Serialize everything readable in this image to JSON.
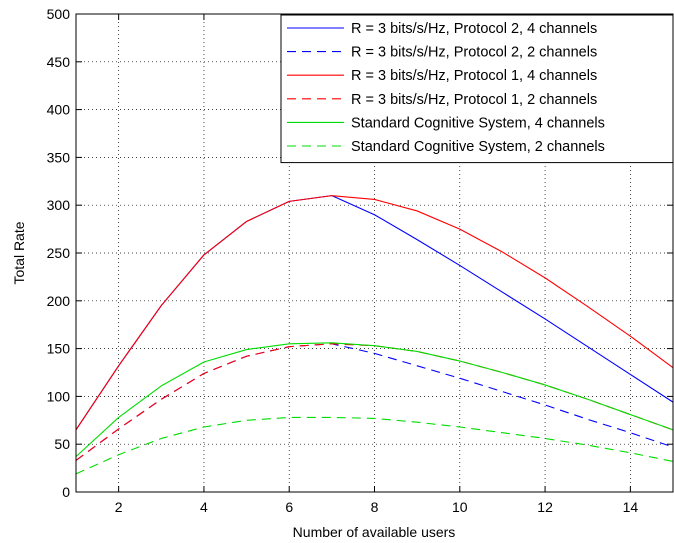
{
  "chart_data": {
    "type": "line",
    "title": "",
    "xlabel": "Number of available users",
    "ylabel": "Total Rate",
    "xlim": [
      1,
      15
    ],
    "ylim": [
      0,
      500
    ],
    "xticks": [
      2,
      4,
      6,
      8,
      10,
      12,
      14
    ],
    "yticks": [
      0,
      50,
      100,
      150,
      200,
      250,
      300,
      350,
      400,
      450,
      500
    ],
    "grid": true,
    "legend_position": "top-right",
    "x": [
      1,
      2,
      3,
      4,
      5,
      6,
      7,
      8,
      9,
      10,
      11,
      12,
      13,
      14,
      15
    ],
    "series": [
      {
        "name": "R = 3 bits/s/Hz, Protocol 2, 4 channels",
        "color": "#0000ff",
        "dash": "solid",
        "values": [
          65,
          132,
          195,
          248,
          283,
          304,
          310,
          290,
          264,
          237,
          209,
          181,
          152,
          123,
          94
        ]
      },
      {
        "name": "R = 3 bits/s/Hz, Protocol 2, 2 channels",
        "color": "#0000ff",
        "dash": "dashed",
        "values": [
          33,
          66,
          97,
          124,
          142,
          152,
          155,
          145,
          132,
          119,
          105,
          91,
          76,
          62,
          47
        ]
      },
      {
        "name": "R = 3 bits/s/Hz, Protocol 1, 4 channels",
        "color": "#ff0000",
        "dash": "solid",
        "values": [
          65,
          132,
          195,
          248,
          283,
          304,
          310,
          306,
          294,
          275,
          251,
          224,
          194,
          163,
          130
        ]
      },
      {
        "name": "R = 3 bits/s/Hz, Protocol 1, 2 channels",
        "color": "#ff0000",
        "dash": "dashed",
        "values": [
          33,
          66,
          97,
          124,
          142,
          152,
          155,
          153,
          147,
          137,
          125,
          112,
          97,
          81,
          65
        ]
      },
      {
        "name": "Standard Cognitive System, 4 channels",
        "color": "#00dd00",
        "dash": "solid",
        "values": [
          37,
          78,
          111,
          136,
          149,
          155,
          156,
          153,
          147,
          137,
          125,
          112,
          97,
          81,
          65
        ]
      },
      {
        "name": "Standard Cognitive System, 2 channels",
        "color": "#00dd00",
        "dash": "dashed",
        "values": [
          19,
          39,
          56,
          68,
          75,
          78,
          78,
          77,
          73,
          68,
          62,
          56,
          49,
          41,
          32
        ]
      }
    ]
  }
}
